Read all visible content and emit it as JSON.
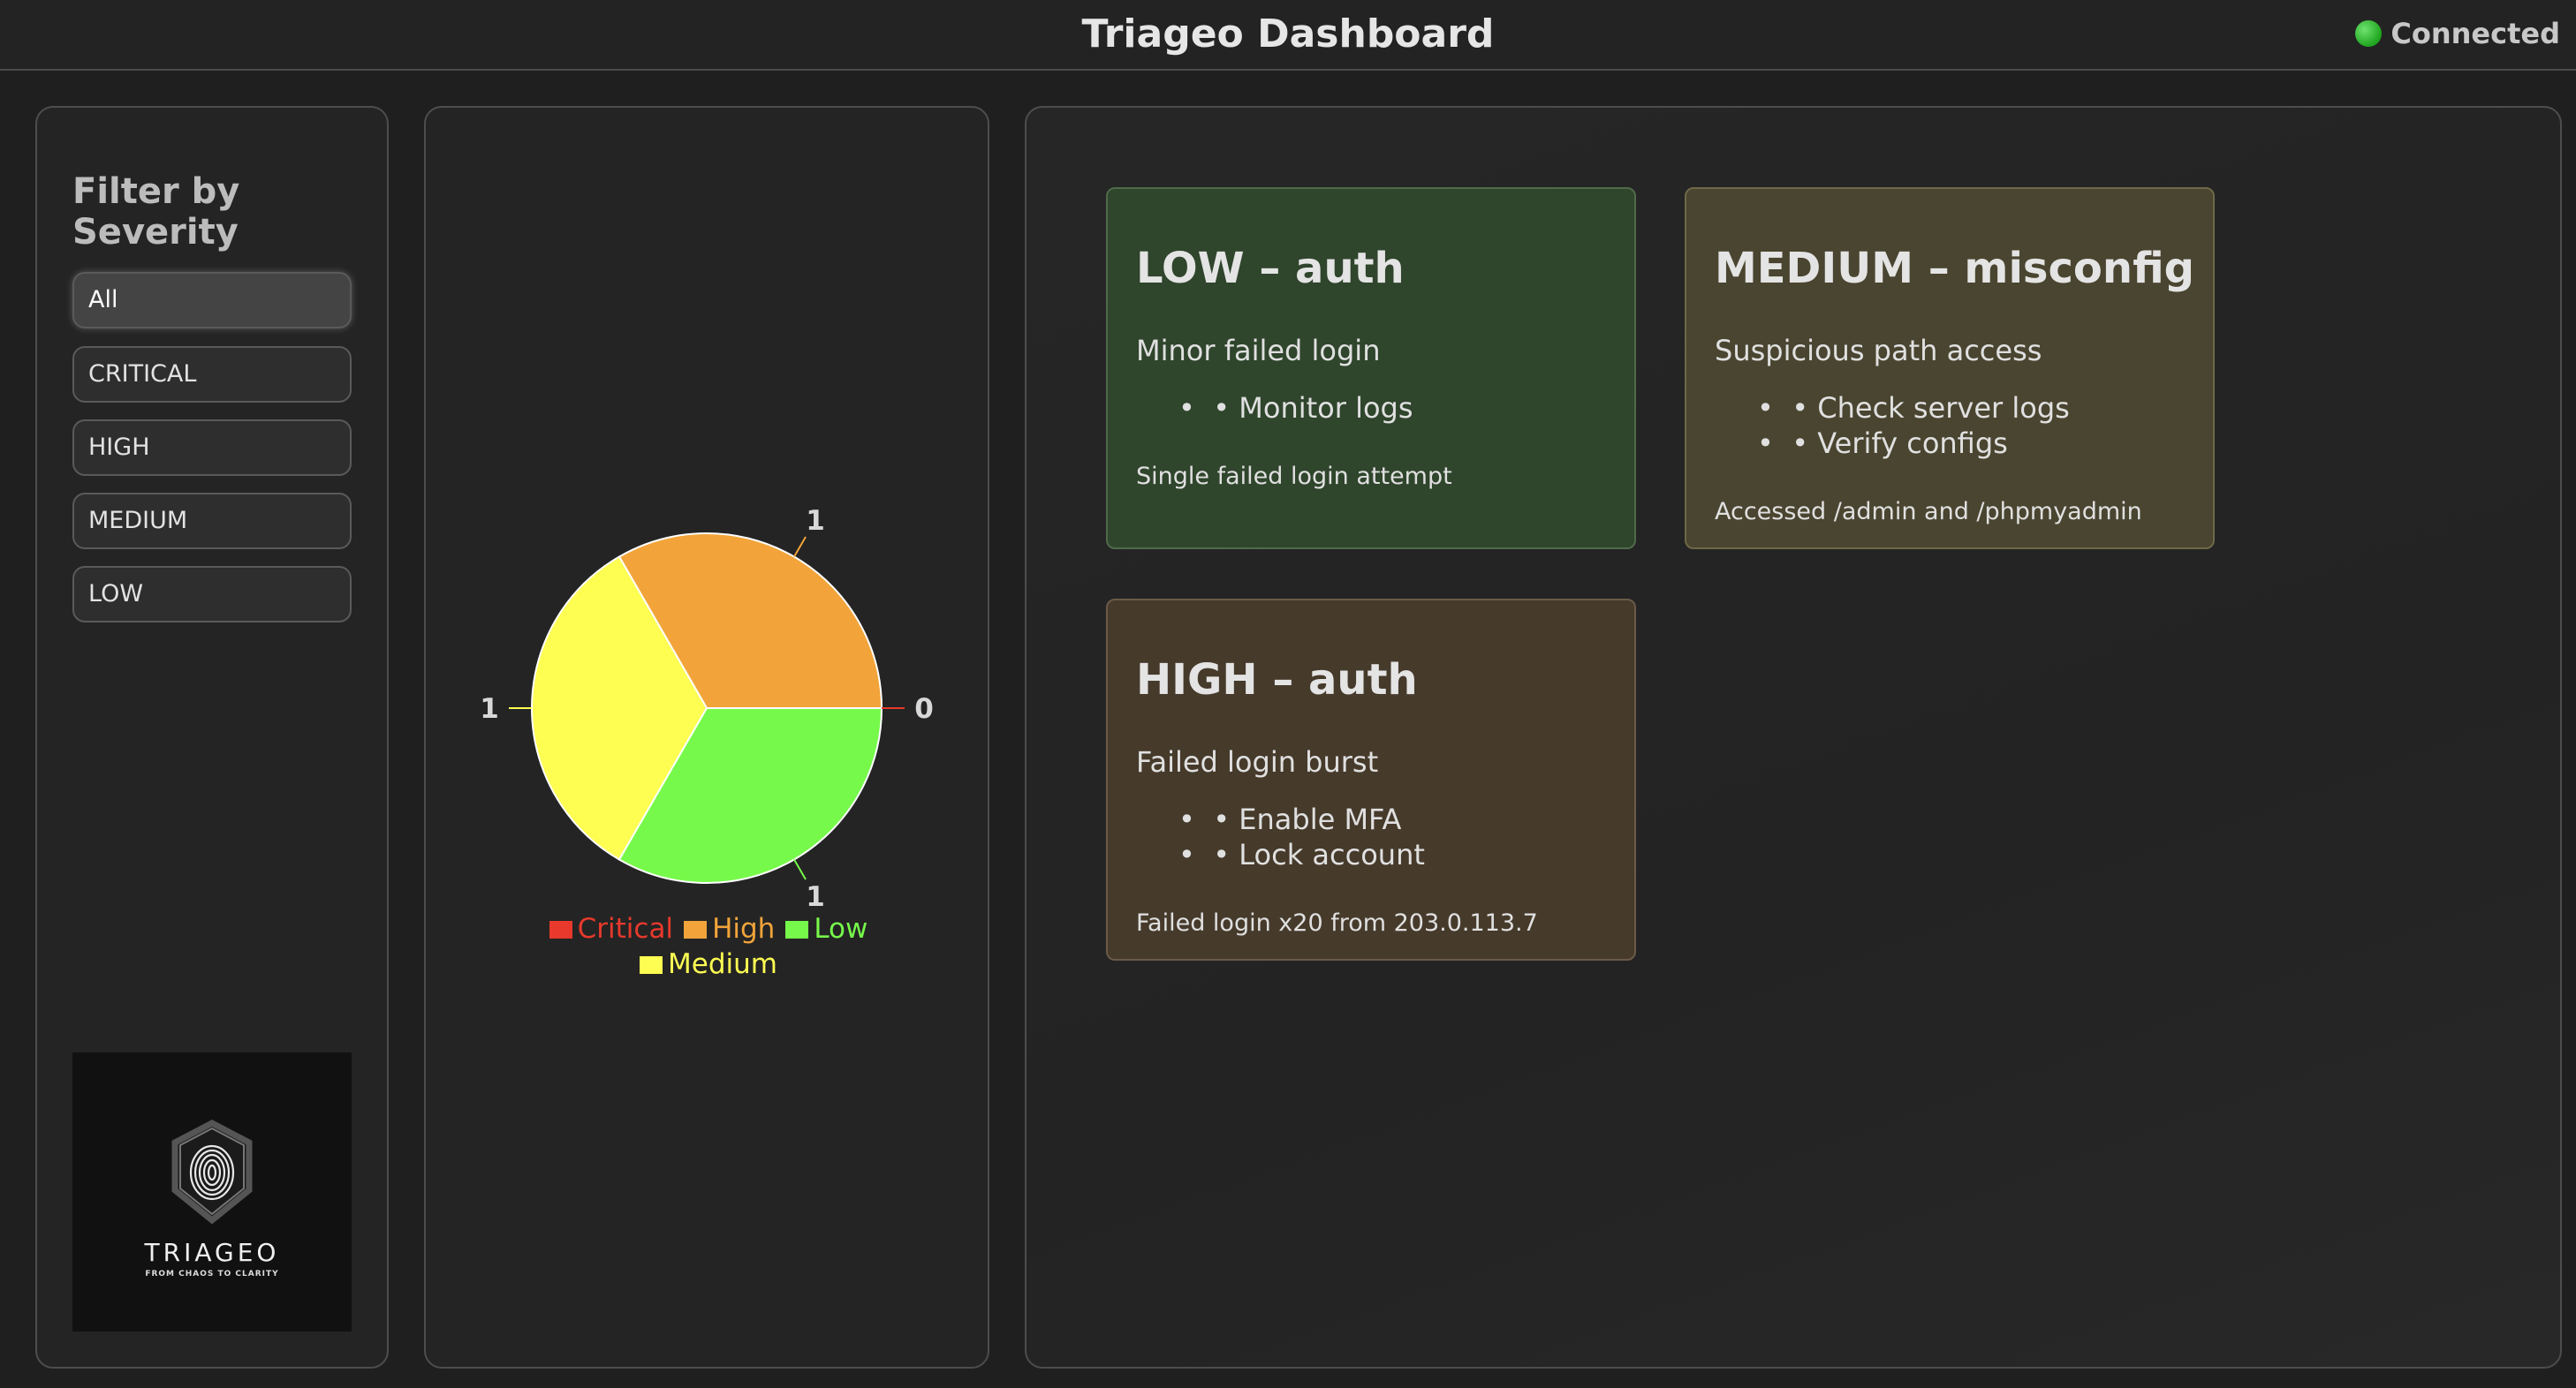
{
  "header": {
    "title": "Triageo Dashboard",
    "status": "Connected",
    "status_color": "#2fbf2f"
  },
  "sidebar": {
    "title": "Filter by Severity",
    "filters": [
      {
        "label": "All",
        "active": true
      },
      {
        "label": "CRITICAL",
        "active": false
      },
      {
        "label": "HIGH",
        "active": false
      },
      {
        "label": "MEDIUM",
        "active": false
      },
      {
        "label": "LOW",
        "active": false
      }
    ],
    "logo": {
      "name": "TRIAGEO",
      "tagline": "FROM CHAOS TO CLARITY",
      "icon": "fingerprint-shield-icon"
    }
  },
  "chart_data": {
    "type": "pie",
    "categories": [
      "Critical",
      "High",
      "Low",
      "Medium"
    ],
    "values": [
      0,
      1,
      1,
      1
    ],
    "data_labels": [
      "0",
      "1",
      "1",
      "1"
    ],
    "colors": [
      "#e8392c",
      "#f2a43a",
      "#76f94a",
      "#fdfd52"
    ],
    "legend_placement": "bottom"
  },
  "incidents": [
    {
      "title": "LOW – auth",
      "summary": "Minor failed login",
      "actions": [
        "• Monitor logs"
      ],
      "detail": "Single failed login attempt",
      "bg": "#2f452c",
      "border": "#4f6a4a"
    },
    {
      "title": "MEDIUM – misconfig",
      "summary": "Suspicious path access",
      "actions": [
        "• Check server logs",
        "• Verify configs"
      ],
      "detail": "Accessed /admin and /phpmyadmin",
      "bg": "#4a4530",
      "border": "#6e6849"
    },
    {
      "title": "HIGH – auth",
      "summary": "Failed login burst",
      "actions": [
        "• Enable MFA",
        "• Lock account"
      ],
      "detail": "Failed login x20 from 203.0.113.7",
      "bg": "#463a2b",
      "border": "#6a5a48"
    }
  ]
}
